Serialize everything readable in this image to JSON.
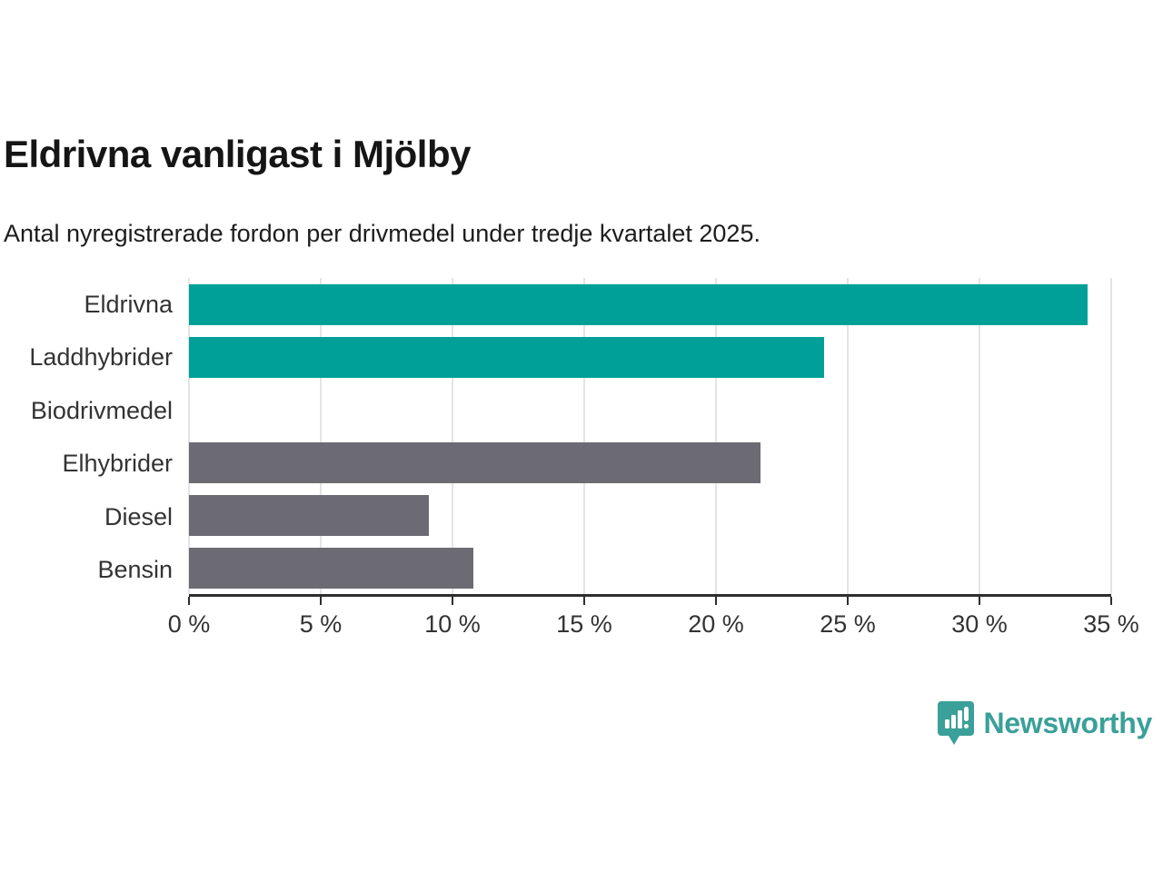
{
  "header": {
    "title": "Eldrivna vanligast i Mjölby",
    "subtitle": "Antal nyregistrerade fordon per drivmedel under tredje kvartalet 2025."
  },
  "chart_data": {
    "type": "bar",
    "orientation": "horizontal",
    "title": "Eldrivna vanligast i Mjölby",
    "subtitle": "Antal nyregistrerade fordon per drivmedel under tredje kvartalet 2025.",
    "categories": [
      "Eldrivna",
      "Laddhybrider",
      "Biodrivmedel",
      "Elhybrider",
      "Diesel",
      "Bensin"
    ],
    "values": [
      34.1,
      24.1,
      0,
      21.7,
      9.1,
      10.8
    ],
    "colors": [
      "#00a099",
      "#00a099",
      "#6c6b73",
      "#6c6b73",
      "#6c6b73",
      "#6c6b73"
    ],
    "xlabel": "",
    "ylabel": "",
    "xlim": [
      0,
      35
    ],
    "x_ticks": [
      0,
      5,
      10,
      15,
      20,
      25,
      30,
      35
    ],
    "x_tick_labels": [
      "0 %",
      "5 %",
      "10 %",
      "15 %",
      "20 %",
      "25 %",
      "30 %",
      "35 %"
    ],
    "grid": true,
    "legend": false,
    "highlight_color": "#00a099",
    "default_color": "#6c6b73"
  },
  "footer": {
    "brand": "Newsworthy",
    "brand_color": "#3aa099",
    "logo_icon": "bar-chart-speech-bubble-icon"
  }
}
